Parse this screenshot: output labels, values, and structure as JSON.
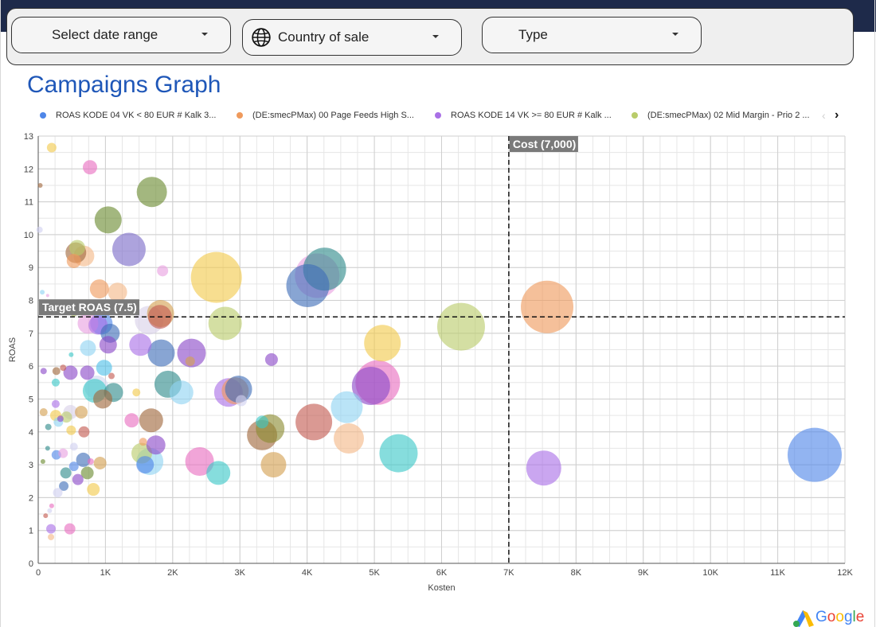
{
  "filters": {
    "date_range": "Select date range",
    "country": "Country of sale",
    "type": "Type"
  },
  "page_title": "Campaigns Graph",
  "legend": [
    {
      "name": "ROAS KODE 04 VK < 80 EUR # Kalk 3...",
      "color": "#4f86e8"
    },
    {
      "name": "(DE:smecPMax) 00 Page Feeds High S...",
      "color": "#ef9a5c"
    },
    {
      "name": "ROAS KODE 14 VK >= 80 EUR # Kalk ...",
      "color": "#a970e6"
    },
    {
      "name": "(DE:smecPMax) 02 Mid Margin - Prio 2 ...",
      "color": "#b9cc6a"
    }
  ],
  "branding": {
    "logo_text": "Google"
  },
  "chart_data": {
    "type": "scatter",
    "subtype": "bubble",
    "xlabel": "Kosten",
    "ylabel": "ROAS",
    "xlim": [
      0,
      12000
    ],
    "ylim": [
      0,
      13
    ],
    "x_ticks": [
      0,
      1000,
      2000,
      3000,
      4000,
      5000,
      6000,
      7000,
      8000,
      9000,
      10000,
      11000,
      12000
    ],
    "x_tick_labels": [
      "0",
      "1K",
      "2K",
      "3K",
      "4K",
      "5K",
      "6K",
      "7K",
      "8K",
      "9K",
      "10K",
      "11K",
      "12K"
    ],
    "y_ticks": [
      0,
      1,
      2,
      3,
      4,
      5,
      6,
      7,
      8,
      9,
      10,
      11,
      12,
      13
    ],
    "y_tick_labels": [
      "0",
      "1",
      "2",
      "3",
      "4",
      "5",
      "6",
      "7",
      "8",
      "9",
      "10",
      "11",
      "12",
      "13"
    ],
    "grid": true,
    "legend_position": "top",
    "reference_lines": [
      {
        "axis": "y",
        "value": 7.5,
        "label": "Target ROAS (7.5)"
      },
      {
        "axis": "x",
        "value": 7000,
        "label": "Cost (7,000)"
      }
    ],
    "points": [
      {
        "x": 11550,
        "y": 3.3,
        "r": 34,
        "c": "#4f86e8"
      },
      {
        "x": 7570,
        "y": 7.8,
        "r": 33,
        "c": "#ef9a5c"
      },
      {
        "x": 7520,
        "y": 2.9,
        "r": 22,
        "c": "#a970e6"
      },
      {
        "x": 6290,
        "y": 7.2,
        "r": 30,
        "c": "#b9cc6a"
      },
      {
        "x": 5360,
        "y": 3.35,
        "r": 24,
        "c": "#3cc8c8"
      },
      {
        "x": 5120,
        "y": 6.7,
        "r": 23,
        "c": "#f2c94c"
      },
      {
        "x": 5050,
        "y": 5.5,
        "r": 28,
        "c": "#e86ec0"
      },
      {
        "x": 4950,
        "y": 5.4,
        "r": 24,
        "c": "#8a49c8"
      },
      {
        "x": 4620,
        "y": 3.8,
        "r": 19,
        "c": "#f4b887"
      },
      {
        "x": 4590,
        "y": 4.75,
        "r": 20,
        "c": "#8fd4f2"
      },
      {
        "x": 4260,
        "y": 8.95,
        "r": 27,
        "c": "#2e8b8b"
      },
      {
        "x": 4150,
        "y": 8.75,
        "r": 28,
        "c": "#e8a0e0"
      },
      {
        "x": 4010,
        "y": 8.45,
        "r": 27,
        "c": "#3f6eb8"
      },
      {
        "x": 4100,
        "y": 4.3,
        "r": 23,
        "c": "#c45a50"
      },
      {
        "x": 3500,
        "y": 3.0,
        "r": 16,
        "c": "#d4a050"
      },
      {
        "x": 3450,
        "y": 4.1,
        "r": 18,
        "c": "#8a8a30"
      },
      {
        "x": 3330,
        "y": 3.9,
        "r": 19,
        "c": "#a0683c"
      },
      {
        "x": 3330,
        "y": 4.3,
        "r": 8,
        "c": "#3cc8c8"
      },
      {
        "x": 3470,
        "y": 6.2,
        "r": 8,
        "c": "#8a49c8"
      },
      {
        "x": 2930,
        "y": 5.25,
        "r": 17,
        "c": "#ef9a5c"
      },
      {
        "x": 2980,
        "y": 5.3,
        "r": 17,
        "c": "#3f6eb8"
      },
      {
        "x": 2830,
        "y": 5.2,
        "r": 18,
        "c": "#a970e6"
      },
      {
        "x": 3020,
        "y": 4.95,
        "r": 7,
        "c": "#d0d0f0"
      },
      {
        "x": 2650,
        "y": 8.7,
        "r": 32,
        "c": "#f2c94c"
      },
      {
        "x": 2780,
        "y": 7.3,
        "r": 21,
        "c": "#b9cc6a"
      },
      {
        "x": 2680,
        "y": 2.75,
        "r": 15,
        "c": "#3cc8c8"
      },
      {
        "x": 2400,
        "y": 3.1,
        "r": 18,
        "c": "#e86ec0"
      },
      {
        "x": 2280,
        "y": 6.4,
        "r": 18,
        "c": "#8a49c8"
      },
      {
        "x": 2260,
        "y": 6.15,
        "r": 6,
        "c": "#d4a050"
      },
      {
        "x": 2130,
        "y": 5.2,
        "r": 15,
        "c": "#8fd4f2"
      },
      {
        "x": 1930,
        "y": 5.45,
        "r": 17,
        "c": "#2e8b8b"
      },
      {
        "x": 1850,
        "y": 8.9,
        "r": 7,
        "c": "#e8a0e0"
      },
      {
        "x": 1820,
        "y": 7.6,
        "r": 17,
        "c": "#d4a050"
      },
      {
        "x": 1810,
        "y": 7.5,
        "r": 15,
        "c": "#c45a50"
      },
      {
        "x": 1830,
        "y": 6.4,
        "r": 17,
        "c": "#3f6eb8"
      },
      {
        "x": 1650,
        "y": 7.4,
        "r": 18,
        "c": "#d8d0e8"
      },
      {
        "x": 1690,
        "y": 11.3,
        "r": 19,
        "c": "#6b8a30"
      },
      {
        "x": 1350,
        "y": 9.55,
        "r": 21,
        "c": "#7a6ac8"
      },
      {
        "x": 1520,
        "y": 6.65,
        "r": 14,
        "c": "#a970e6"
      },
      {
        "x": 1680,
        "y": 4.35,
        "r": 15,
        "c": "#a0683c"
      },
      {
        "x": 1750,
        "y": 3.6,
        "r": 12,
        "c": "#8a49c8"
      },
      {
        "x": 1660,
        "y": 3.1,
        "r": 17,
        "c": "#8fd4f2"
      },
      {
        "x": 1590,
        "y": 3.0,
        "r": 11,
        "c": "#4f86e8"
      },
      {
        "x": 1540,
        "y": 3.35,
        "r": 13,
        "c": "#b9cc6a"
      },
      {
        "x": 1390,
        "y": 4.35,
        "r": 9,
        "c": "#e86ec0"
      },
      {
        "x": 1460,
        "y": 5.2,
        "r": 5,
        "c": "#f2c94c"
      },
      {
        "x": 1560,
        "y": 3.7,
        "r": 5,
        "c": "#ef9a5c"
      },
      {
        "x": 1040,
        "y": 10.45,
        "r": 17,
        "c": "#6b8a30"
      },
      {
        "x": 1180,
        "y": 8.25,
        "r": 12,
        "c": "#f4b887"
      },
      {
        "x": 910,
        "y": 8.35,
        "r": 12,
        "c": "#ef9a5c"
      },
      {
        "x": 770,
        "y": 12.05,
        "r": 9,
        "c": "#e86ec0"
      },
      {
        "x": 940,
        "y": 7.3,
        "r": 14,
        "c": "#4f86e8"
      },
      {
        "x": 890,
        "y": 7.25,
        "r": 12,
        "c": "#a970e6"
      },
      {
        "x": 740,
        "y": 7.3,
        "r": 13,
        "c": "#e8a0e0"
      },
      {
        "x": 1070,
        "y": 7.0,
        "r": 12,
        "c": "#3f6eb8"
      },
      {
        "x": 1040,
        "y": 6.65,
        "r": 11,
        "c": "#8a49c8"
      },
      {
        "x": 740,
        "y": 6.55,
        "r": 10,
        "c": "#8fd4f2"
      },
      {
        "x": 980,
        "y": 5.95,
        "r": 10,
        "c": "#4fc0e8"
      },
      {
        "x": 730,
        "y": 5.8,
        "r": 9,
        "c": "#8a49c8"
      },
      {
        "x": 1090,
        "y": 5.7,
        "r": 4,
        "c": "#c45a50"
      },
      {
        "x": 870,
        "y": 5.35,
        "r": 15,
        "c": "#d0d8f0"
      },
      {
        "x": 840,
        "y": 5.25,
        "r": 15,
        "c": "#3cc8c8"
      },
      {
        "x": 1120,
        "y": 5.2,
        "r": 12,
        "c": "#2e8b8b"
      },
      {
        "x": 960,
        "y": 5.0,
        "r": 12,
        "c": "#a0683c"
      },
      {
        "x": 680,
        "y": 9.35,
        "r": 13,
        "c": "#f4b887"
      },
      {
        "x": 560,
        "y": 9.45,
        "r": 13,
        "c": "#a0683c"
      },
      {
        "x": 580,
        "y": 9.6,
        "r": 10,
        "c": "#b9cc6a"
      },
      {
        "x": 530,
        "y": 9.2,
        "r": 9,
        "c": "#ef9a5c"
      },
      {
        "x": 480,
        "y": 5.8,
        "r": 9,
        "c": "#8a49c8"
      },
      {
        "x": 270,
        "y": 5.85,
        "r": 5,
        "c": "#a0683c"
      },
      {
        "x": 370,
        "y": 5.95,
        "r": 4,
        "c": "#c45a50"
      },
      {
        "x": 80,
        "y": 5.85,
        "r": 4,
        "c": "#8a49c8"
      },
      {
        "x": 260,
        "y": 5.5,
        "r": 5,
        "c": "#3cc8c8"
      },
      {
        "x": 490,
        "y": 6.35,
        "r": 3,
        "c": "#3cc8c8"
      },
      {
        "x": 640,
        "y": 4.6,
        "r": 8,
        "c": "#d4a050"
      },
      {
        "x": 480,
        "y": 4.6,
        "r": 9,
        "c": "#d8d0e8"
      },
      {
        "x": 420,
        "y": 4.45,
        "r": 7,
        "c": "#b9cc6a"
      },
      {
        "x": 330,
        "y": 4.4,
        "r": 4,
        "c": "#8a49c8"
      },
      {
        "x": 260,
        "y": 4.5,
        "r": 7,
        "c": "#f2c94c"
      },
      {
        "x": 300,
        "y": 4.3,
        "r": 6,
        "c": "#8fd4f2"
      },
      {
        "x": 260,
        "y": 4.85,
        "r": 5,
        "c": "#a970e6"
      },
      {
        "x": 80,
        "y": 4.6,
        "r": 5,
        "c": "#d4a050"
      },
      {
        "x": 150,
        "y": 4.15,
        "r": 4,
        "c": "#2e8b8b"
      },
      {
        "x": 490,
        "y": 4.05,
        "r": 6,
        "c": "#f2c94c"
      },
      {
        "x": 680,
        "y": 4.0,
        "r": 7,
        "c": "#c45a50"
      },
      {
        "x": 530,
        "y": 3.55,
        "r": 5,
        "c": "#d0d0f0"
      },
      {
        "x": 270,
        "y": 3.3,
        "r": 6,
        "c": "#4f86e8"
      },
      {
        "x": 370,
        "y": 3.35,
        "r": 6,
        "c": "#e8a0e0"
      },
      {
        "x": 140,
        "y": 3.5,
        "r": 3,
        "c": "#2e8b8b"
      },
      {
        "x": 670,
        "y": 3.15,
        "r": 9,
        "c": "#3f6eb8"
      },
      {
        "x": 530,
        "y": 2.95,
        "r": 6,
        "c": "#4f86e8"
      },
      {
        "x": 920,
        "y": 3.05,
        "r": 8,
        "c": "#d4a050"
      },
      {
        "x": 780,
        "y": 3.1,
        "r": 4,
        "c": "#e86ec0"
      },
      {
        "x": 70,
        "y": 3.1,
        "r": 3,
        "c": "#6b8a30"
      },
      {
        "x": 410,
        "y": 2.75,
        "r": 7,
        "c": "#2e8b8b"
      },
      {
        "x": 730,
        "y": 2.75,
        "r": 8,
        "c": "#6b8a30"
      },
      {
        "x": 590,
        "y": 2.55,
        "r": 7,
        "c": "#8a49c8"
      },
      {
        "x": 380,
        "y": 2.35,
        "r": 6,
        "c": "#3f6eb8"
      },
      {
        "x": 290,
        "y": 2.15,
        "r": 6,
        "c": "#d0d0f0"
      },
      {
        "x": 820,
        "y": 2.25,
        "r": 8,
        "c": "#f2c94c"
      },
      {
        "x": 200,
        "y": 1.75,
        "r": 3,
        "c": "#e86ec0"
      },
      {
        "x": 170,
        "y": 1.6,
        "r": 3,
        "c": "#d0d0f0"
      },
      {
        "x": 110,
        "y": 1.45,
        "r": 3,
        "c": "#c45a50"
      },
      {
        "x": 190,
        "y": 1.05,
        "r": 6,
        "c": "#a970e6"
      },
      {
        "x": 470,
        "y": 1.05,
        "r": 7,
        "c": "#e86ec0"
      },
      {
        "x": 190,
        "y": 0.8,
        "r": 4,
        "c": "#f4b887"
      },
      {
        "x": 200,
        "y": 12.65,
        "r": 6,
        "c": "#f2c94c"
      },
      {
        "x": 30,
        "y": 11.5,
        "r": 3,
        "c": "#a0683c"
      },
      {
        "x": 20,
        "y": 10.15,
        "r": 4,
        "c": "#d0d0f0"
      },
      {
        "x": 60,
        "y": 8.25,
        "r": 3,
        "c": "#8fd4f2"
      },
      {
        "x": 140,
        "y": 8.15,
        "r": 2,
        "c": "#e8a0e0"
      },
      {
        "x": 530,
        "y": 7.6,
        "r": 4,
        "c": "#b9cc6a"
      }
    ]
  }
}
